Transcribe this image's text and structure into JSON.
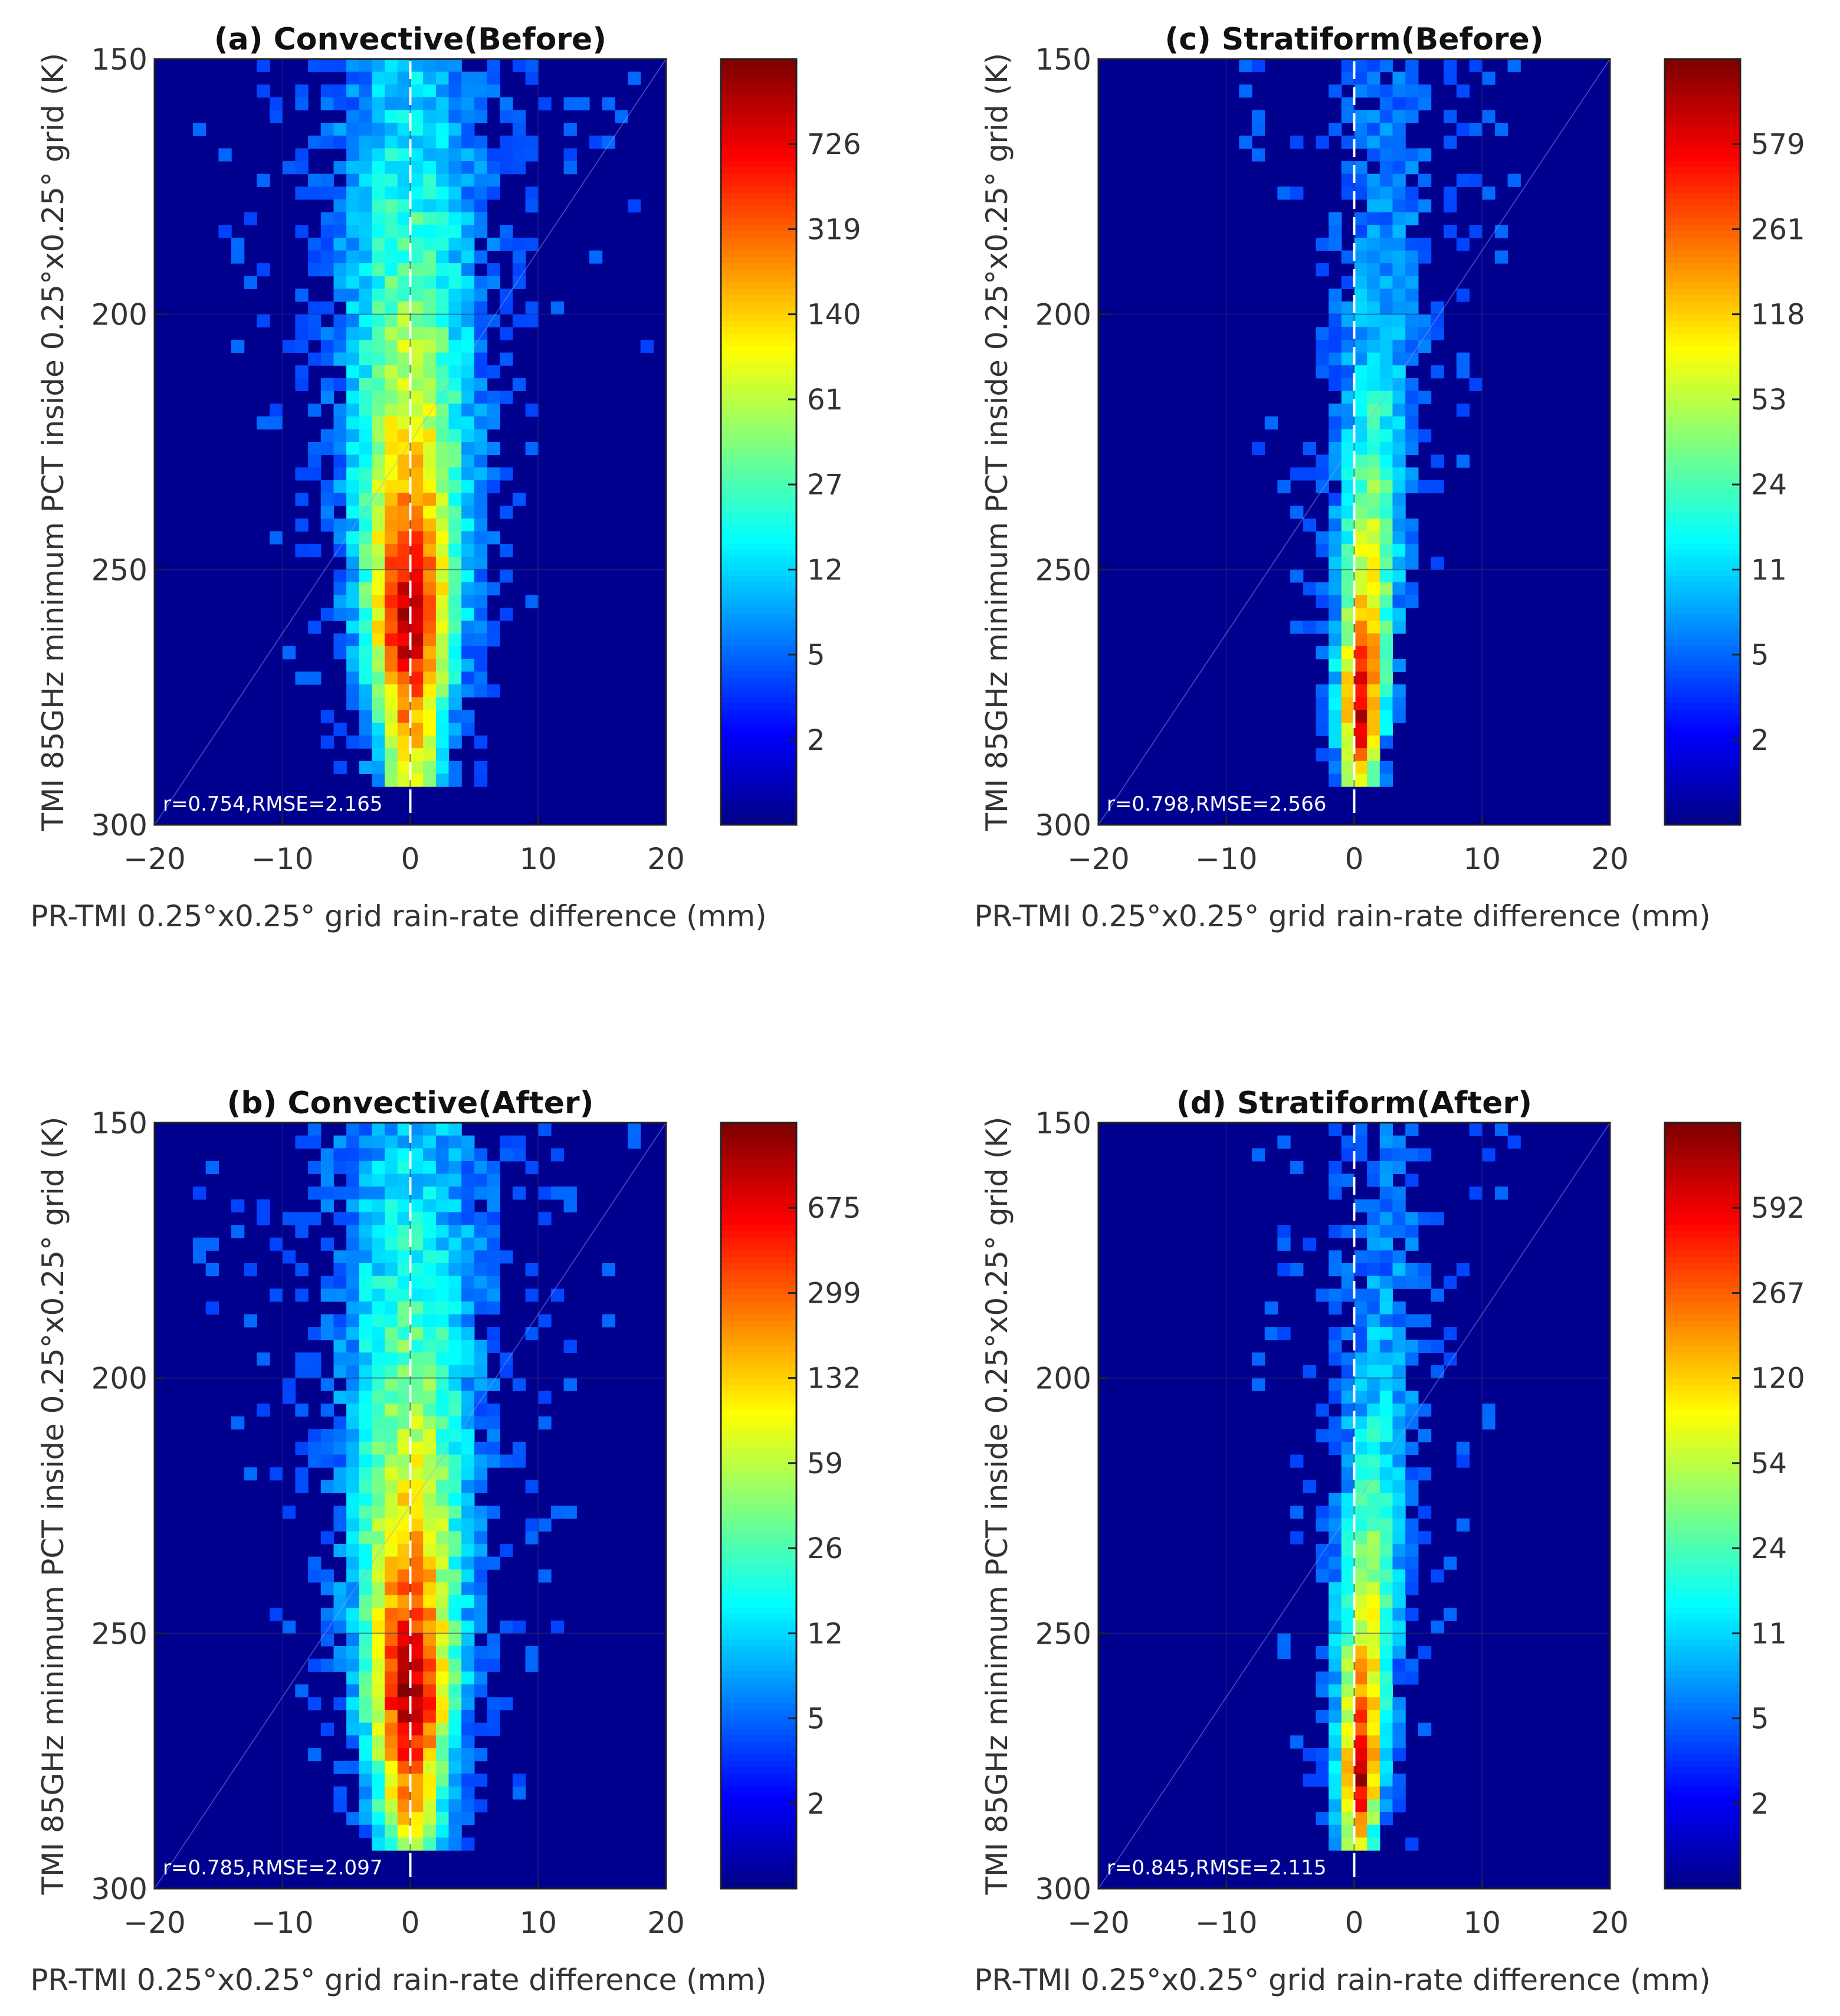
{
  "figure": {
    "description_label": "2D histogram panels"
  },
  "chart_data": [
    {
      "id": "a",
      "type": "heatmap",
      "title": "(a) Convective(Before)",
      "xlabel": "PR-TMI 0.25°x0.25° grid rain-rate difference (mm)",
      "ylabel": "TMI 85GHz minimum PCT inside 0.25°x0.25° grid (K)",
      "xlim": [
        -20,
        20
      ],
      "ylim": [
        150,
        300
      ],
      "y_reversed": true,
      "xticks": [
        -20,
        -10,
        0,
        10,
        20
      ],
      "yticks": [
        150,
        200,
        250,
        300
      ],
      "grid": true,
      "annotation": "r=0.754,RMSE=2.165",
      "colorbar": {
        "ticks": [
          "726",
          "319",
          "140",
          "61",
          "27",
          "12",
          "5",
          "2"
        ]
      },
      "distribution": {
        "center_x": 0,
        "peak_y": 260,
        "max_log": 3.1
      }
    },
    {
      "id": "c",
      "type": "heatmap",
      "title": "(c) Stratiform(Before)",
      "xlabel": "PR-TMI 0.25°x0.25° grid rain-rate difference (mm)",
      "ylabel": "TMI 85GHz minimum PCT inside 0.25°x0.25° grid (K)",
      "xlim": [
        -20,
        20
      ],
      "ylim": [
        150,
        300
      ],
      "y_reversed": true,
      "xticks": [
        -20,
        -10,
        0,
        10,
        20
      ],
      "yticks": [
        150,
        200,
        250,
        300
      ],
      "grid": true,
      "annotation": "r=0.798,RMSE=2.566",
      "colorbar": {
        "ticks": [
          "579",
          "261",
          "118",
          "53",
          "24",
          "11",
          "5",
          "2"
        ]
      },
      "distribution": {
        "center_x": 0.3,
        "peak_y": 278,
        "max_log": 3.0
      }
    },
    {
      "id": "b",
      "type": "heatmap",
      "title": "(b) Convective(After)",
      "xlabel": "PR-TMI 0.25°x0.25° grid rain-rate difference (mm)",
      "ylabel": "TMI 85GHz minimum PCT inside 0.25°x0.25° grid (K)",
      "xlim": [
        -20,
        20
      ],
      "ylim": [
        150,
        300
      ],
      "y_reversed": true,
      "xticks": [
        -20,
        -10,
        0,
        10,
        20
      ],
      "yticks": [
        150,
        200,
        250,
        300
      ],
      "grid": true,
      "annotation": "r=0.785,RMSE=2.097",
      "colorbar": {
        "ticks": [
          "675",
          "299",
          "132",
          "59",
          "26",
          "12",
          "5",
          "2"
        ]
      },
      "distribution": {
        "center_x": 0,
        "peak_y": 262,
        "max_log": 3.1
      }
    },
    {
      "id": "d",
      "type": "heatmap",
      "title": "(d) Stratiform(After)",
      "xlabel": "PR-TMI 0.25°x0.25° grid rain-rate difference (mm)",
      "ylabel": "TMI 85GHz minimum PCT inside 0.25°x0.25° grid (K)",
      "xlim": [
        -20,
        20
      ],
      "ylim": [
        150,
        300
      ],
      "y_reversed": true,
      "xticks": [
        -20,
        -10,
        0,
        10,
        20
      ],
      "yticks": [
        150,
        200,
        250,
        300
      ],
      "grid": true,
      "annotation": "r=0.845,RMSE=2.115",
      "colorbar": {
        "ticks": [
          "592",
          "267",
          "120",
          "54",
          "24",
          "11",
          "5",
          "2"
        ]
      },
      "distribution": {
        "center_x": 0.2,
        "peak_y": 278,
        "max_log": 3.0
      }
    }
  ]
}
